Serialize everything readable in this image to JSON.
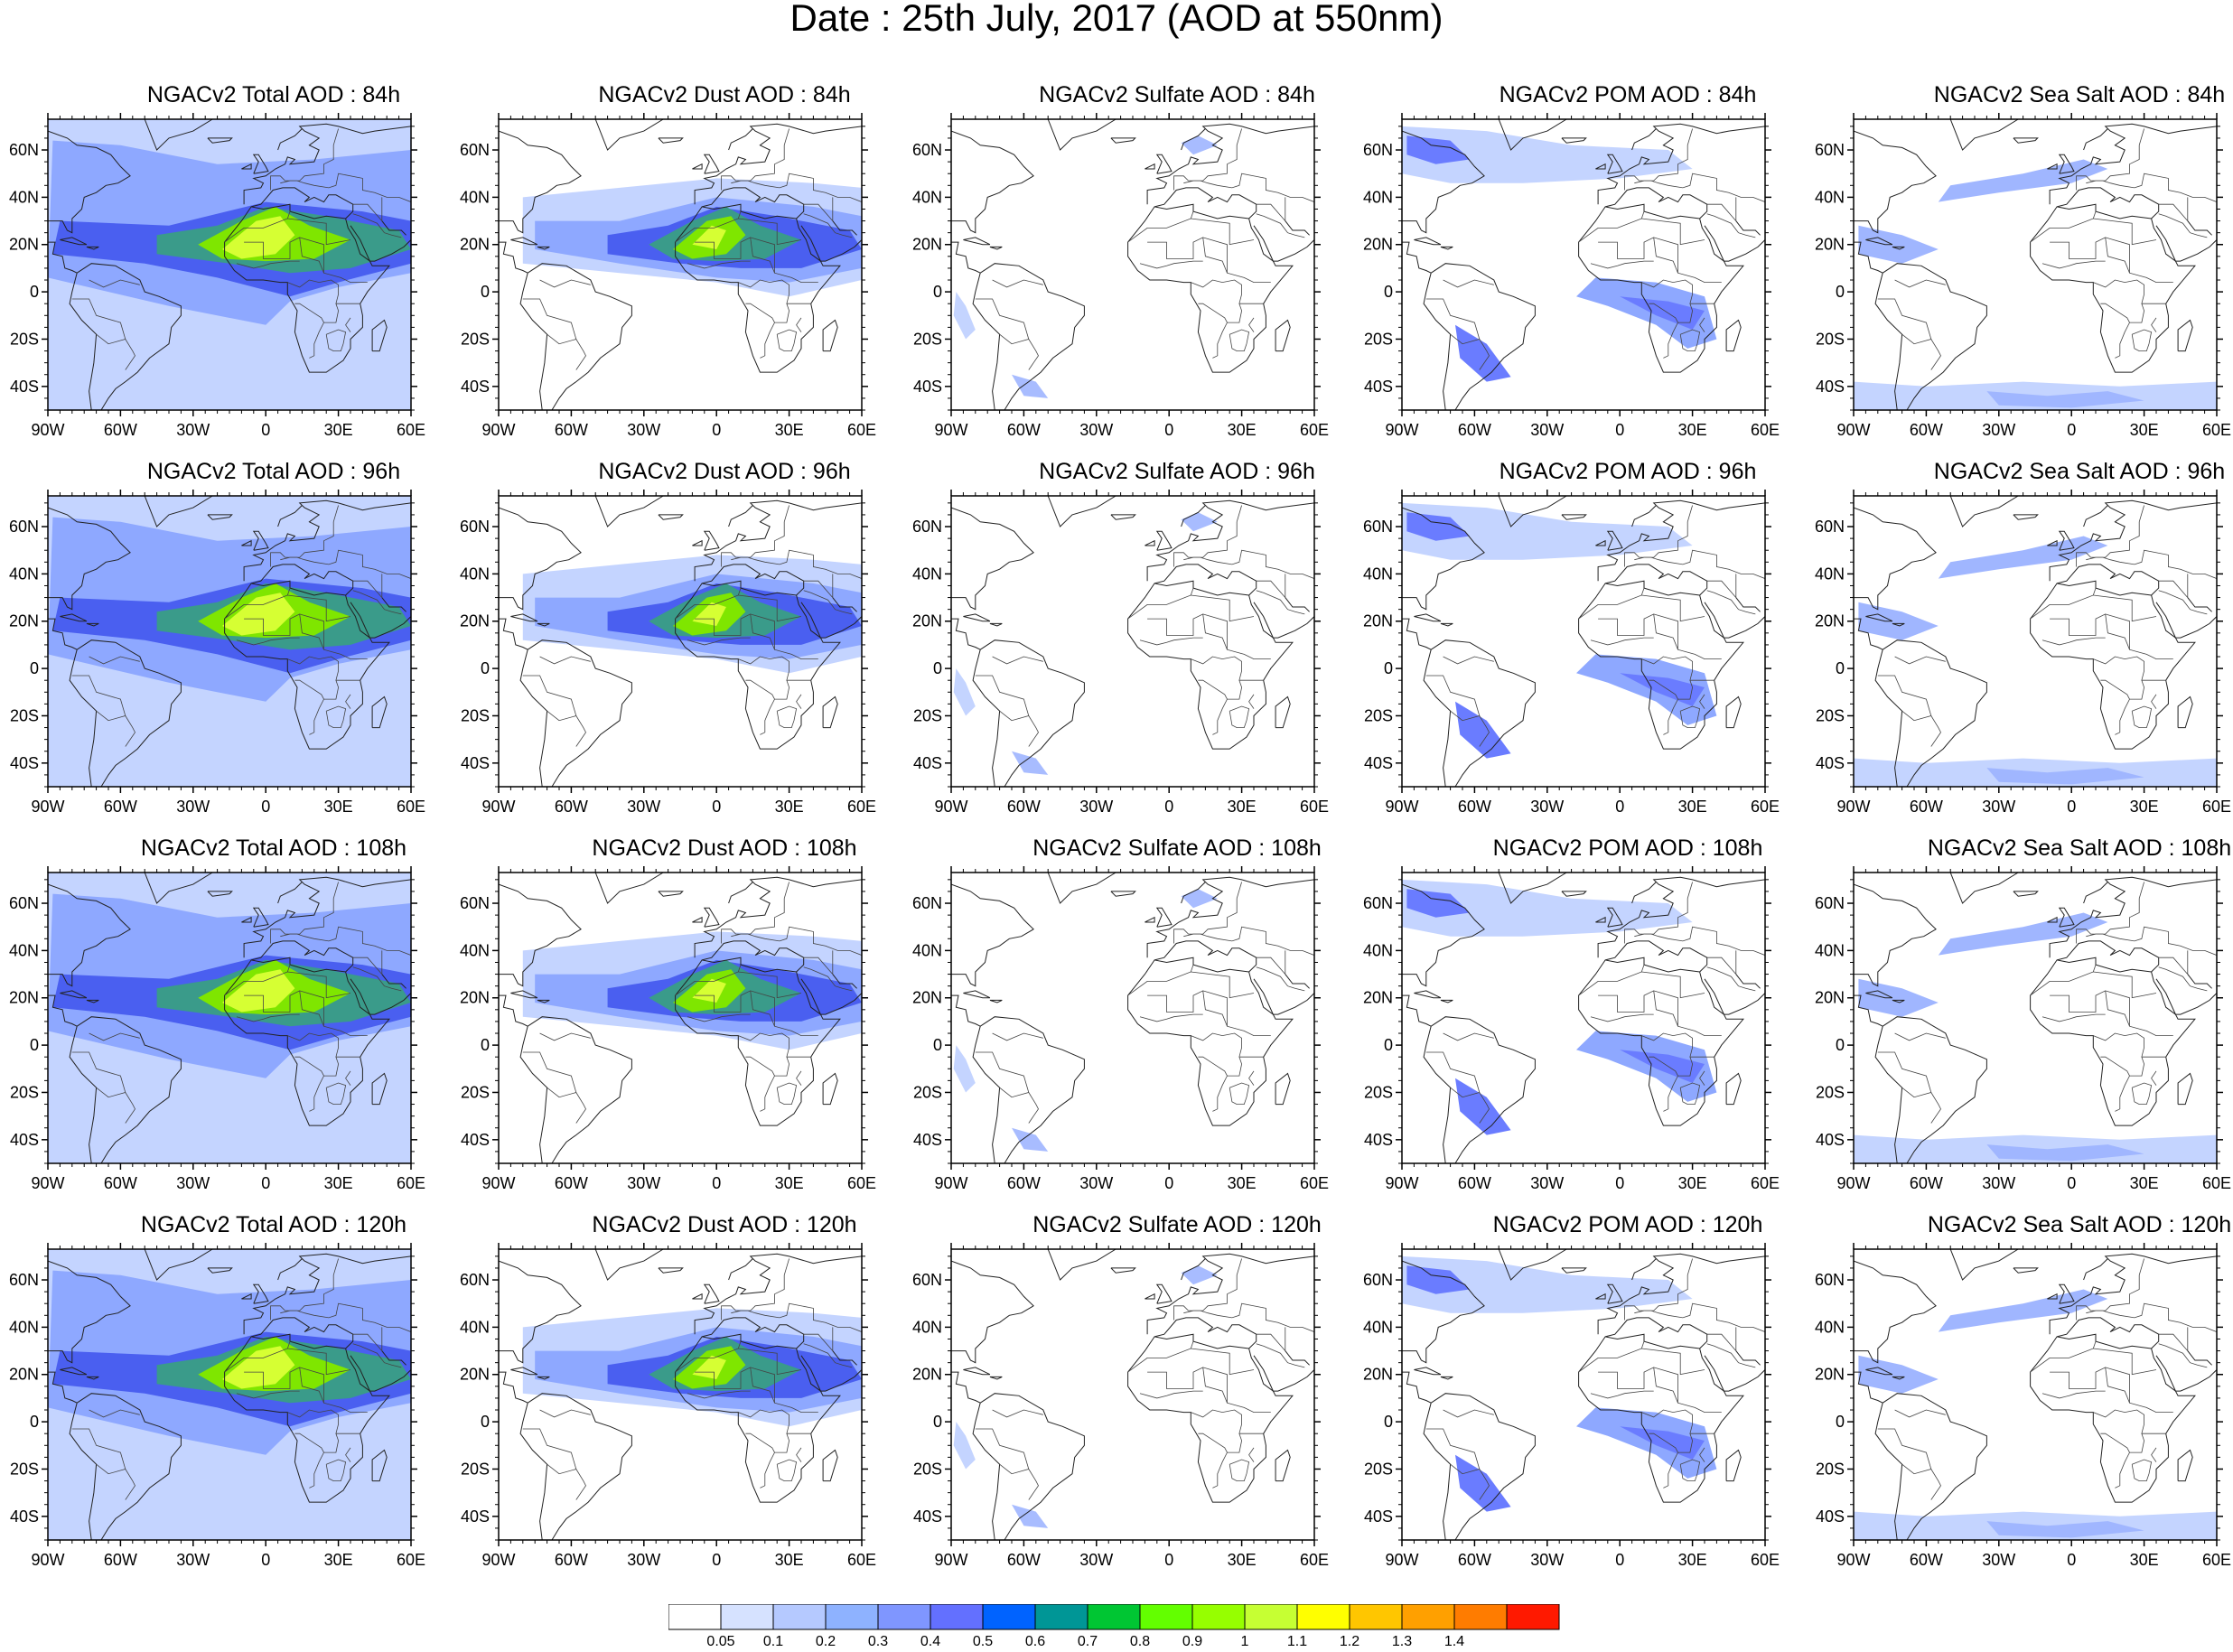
{
  "page": {
    "title": "Date : 25th July, 2017 (AOD at 550nm)"
  },
  "map": {
    "lon_labels": [
      "90W",
      "60W",
      "30W",
      "0",
      "30E",
      "60E"
    ],
    "lat_labels": [
      "60N",
      "40N",
      "20N",
      "0",
      "20S",
      "40S"
    ]
  },
  "colorbar": {
    "labels": [
      "0.05",
      "0.1",
      "0.2",
      "0.3",
      "0.4",
      "0.5",
      "0.6",
      "0.7",
      "0.8",
      "0.9",
      "1",
      "1.1",
      "1.2",
      "1.3",
      "1.4"
    ],
    "colors": [
      "#ffffff",
      "#d6e2ff",
      "#b5c9ff",
      "#8eb2ff",
      "#7f96ff",
      "#6370ff",
      "#0063ff",
      "#009696",
      "#00c633",
      "#63ff00",
      "#96ff00",
      "#c6ff33",
      "#ffff00",
      "#ffc600",
      "#ffa000",
      "#ff7c00",
      "#ff1900"
    ]
  },
  "species_colors": {
    "Total": [
      "#c4d4ff",
      "#8ea8ff",
      "#4a5ff0",
      "#3a9b8a",
      "#7fe600",
      "#d6ff33"
    ],
    "Dust": [
      "#c4d4ff",
      "#8ea8ff",
      "#4a5ff0",
      "#3a9b8a",
      "#7fe600",
      "#d6ff33"
    ],
    "Sulfate": [
      "#c4d4ff",
      "#a8bcff"
    ],
    "POM": [
      "#c4d4ff",
      "#8ea8ff",
      "#6a7cff"
    ],
    "SeaSalt": [
      "#c4d4ff",
      "#a0b6ff"
    ]
  },
  "panels": [
    {
      "title": "NGACv2 Total AOD : 84h",
      "species": "Total"
    },
    {
      "title": "NGACv2 Dust AOD : 84h",
      "species": "Dust"
    },
    {
      "title": "NGACv2 Sulfate AOD : 84h",
      "species": "Sulfate"
    },
    {
      "title": "NGACv2 POM AOD : 84h",
      "species": "POM"
    },
    {
      "title": "NGACv2 Sea Salt AOD : 84h",
      "species": "SeaSalt"
    },
    {
      "title": "NGACv2 Total AOD : 96h",
      "species": "Total"
    },
    {
      "title": "NGACv2 Dust AOD : 96h",
      "species": "Dust"
    },
    {
      "title": "NGACv2 Sulfate AOD : 96h",
      "species": "Sulfate"
    },
    {
      "title": "NGACv2 POM AOD : 96h",
      "species": "POM"
    },
    {
      "title": "NGACv2 Sea Salt AOD : 96h",
      "species": "SeaSalt"
    },
    {
      "title": "NGACv2 Total AOD : 108h",
      "species": "Total"
    },
    {
      "title": "NGACv2 Dust AOD : 108h",
      "species": "Dust"
    },
    {
      "title": "NGACv2 Sulfate AOD : 108h",
      "species": "Sulfate"
    },
    {
      "title": "NGACv2 POM AOD : 108h",
      "species": "POM"
    },
    {
      "title": "NGACv2 Sea Salt AOD : 108h",
      "species": "SeaSalt"
    },
    {
      "title": "NGACv2 Total AOD : 120h",
      "species": "Total"
    },
    {
      "title": "NGACv2 Dust AOD : 120h",
      "species": "Dust"
    },
    {
      "title": "NGACv2 Sulfate AOD : 120h",
      "species": "Sulfate"
    },
    {
      "title": "NGACv2 POM AOD : 120h",
      "species": "POM"
    },
    {
      "title": "NGACv2 Sea Salt  AOD : 120h",
      "species": "SeaSalt"
    }
  ]
}
